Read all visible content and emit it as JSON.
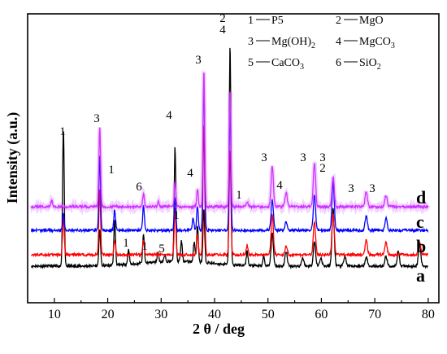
{
  "chart_data": {
    "type": "line",
    "title": "",
    "xlabel": "2 θ / deg",
    "ylabel": "Intensity (a.u.)",
    "xlim": [
      5,
      82
    ],
    "xticks": [
      10,
      20,
      30,
      40,
      50,
      60,
      70,
      80
    ],
    "yticks": false,
    "grid": false,
    "legend": {
      "placement": "top-right",
      "entries": [
        {
          "num": "1",
          "text": "P5"
        },
        {
          "num": "2",
          "text": "MgO"
        },
        {
          "num": "3",
          "text": "Mg(OH)",
          "sub": "2"
        },
        {
          "num": "4",
          "text": "MgCO",
          "sub": "3"
        },
        {
          "num": "5",
          "text": "CaCO",
          "sub": "3"
        },
        {
          "num": "6",
          "text": "SiO",
          "sub": "2"
        }
      ]
    },
    "series": [
      {
        "name": "a",
        "color": "#000000",
        "peaks": [
          [
            11.7,
            168
          ],
          [
            18.5,
            45
          ],
          [
            21.3,
            55
          ],
          [
            23.9,
            18
          ],
          [
            26.7,
            35
          ],
          [
            29.4,
            12
          ],
          [
            30.7,
            8
          ],
          [
            32.6,
            140
          ],
          [
            33.8,
            25
          ],
          [
            36.2,
            25
          ],
          [
            36.8,
            45
          ],
          [
            38.0,
            65
          ],
          [
            42.9,
            270
          ],
          [
            46.1,
            18
          ],
          [
            49.2,
            12
          ],
          [
            50.8,
            40
          ],
          [
            53.4,
            18
          ],
          [
            56.5,
            10
          ],
          [
            58.7,
            30
          ],
          [
            59.9,
            10
          ],
          [
            62.2,
            70
          ],
          [
            64.4,
            12
          ],
          [
            68.4,
            12
          ],
          [
            72.1,
            12
          ],
          [
            74.4,
            18
          ],
          [
            78.4,
            28
          ]
        ]
      },
      {
        "name": "b",
        "color": "#ff0000",
        "peaks": [
          [
            11.7,
            45
          ],
          [
            18.5,
            80
          ],
          [
            21.3,
            18
          ],
          [
            26.7,
            18
          ],
          [
            32.6,
            58
          ],
          [
            36.8,
            25
          ],
          [
            38.0,
            160
          ],
          [
            42.9,
            130
          ],
          [
            46.1,
            12
          ],
          [
            50.8,
            50
          ],
          [
            53.4,
            10
          ],
          [
            58.7,
            40
          ],
          [
            62.2,
            50
          ],
          [
            68.4,
            18
          ],
          [
            72.1,
            15
          ],
          [
            78.4,
            15
          ]
        ]
      },
      {
        "name": "c",
        "color": "#0000ff",
        "peaks": [
          [
            11.7,
            20
          ],
          [
            18.5,
            90
          ],
          [
            21.3,
            25
          ],
          [
            26.7,
            30
          ],
          [
            32.6,
            40
          ],
          [
            36.0,
            15
          ],
          [
            36.8,
            30
          ],
          [
            38.0,
            185
          ],
          [
            42.9,
            150
          ],
          [
            50.8,
            38
          ],
          [
            53.4,
            10
          ],
          [
            58.7,
            44
          ],
          [
            62.2,
            60
          ],
          [
            68.4,
            18
          ],
          [
            72.1,
            15
          ]
        ]
      },
      {
        "name": "d",
        "color": "#cc33ff",
        "peaks": [
          [
            9.5,
            8
          ],
          [
            18.5,
            98
          ],
          [
            26.7,
            17
          ],
          [
            29.5,
            6
          ],
          [
            32.6,
            30
          ],
          [
            36.8,
            20
          ],
          [
            38.0,
            168
          ],
          [
            42.9,
            143
          ],
          [
            46.1,
            6
          ],
          [
            50.8,
            50
          ],
          [
            53.4,
            17
          ],
          [
            58.7,
            54
          ],
          [
            62.2,
            37
          ],
          [
            68.4,
            18
          ],
          [
            72.1,
            14
          ]
        ]
      }
    ],
    "annotations": [
      {
        "text": "1",
        "x": 11.6,
        "y": 35
      },
      {
        "text": "3",
        "x": 18.3,
        "y": 35
      },
      {
        "text": "1",
        "x": 21.3,
        "y": 35
      },
      {
        "text": "6",
        "x": 26.7,
        "y": 35
      },
      {
        "text": "4",
        "x": 32.7,
        "y": 35
      },
      {
        "text": "3",
        "x": 37.9,
        "y": 35
      },
      {
        "text": "4",
        "x": 36.8,
        "y": 35
      },
      {
        "text": "2",
        "x": 42.9,
        "y": 35
      },
      {
        "text": "4",
        "x": 42.9,
        "y": 35
      },
      {
        "text": "1",
        "x": 46.4,
        "y": 35
      },
      {
        "text": "3",
        "x": 50.9,
        "y": 35
      },
      {
        "text": "4",
        "x": 53.9,
        "y": 35
      },
      {
        "text": "3",
        "x": 58.4,
        "y": 35
      },
      {
        "text": "3",
        "x": 62.0,
        "y": 35
      },
      {
        "text": "2",
        "x": 62.0,
        "y": 35
      },
      {
        "text": "3",
        "x": 68.4,
        "y": 35
      },
      {
        "text": "3",
        "x": 72.0,
        "y": 35
      },
      {
        "text": "1",
        "x": 34.0,
        "y": 35
      },
      {
        "text": "1",
        "x": 23.9,
        "y": 35
      },
      {
        "text": "1",
        "x": 27.4,
        "y": 35
      },
      {
        "text": "5",
        "x": 30.7,
        "y": 35
      }
    ]
  }
}
